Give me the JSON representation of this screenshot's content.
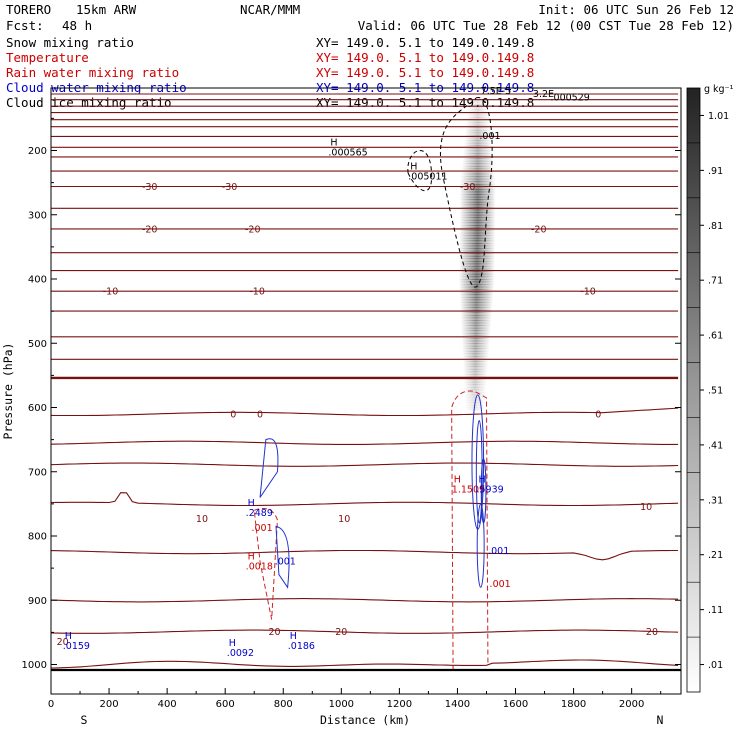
{
  "header": {
    "model": "TORERO",
    "resolution": "15km ARW",
    "org": "NCAR/MMM",
    "init": "Init: 06 UTC Sun 26 Feb 12",
    "fcst_label": "Fcst:",
    "fcst_value": "48 h",
    "valid": "Valid: 06 UTC Tue 28 Feb 12 (00 CST Tue 28 Feb 12)",
    "field_lines": [
      {
        "name": "Snow mixing ratio",
        "xy": "XY= 149.0.  5.1 to 149.0.149.8",
        "color": "#000000"
      },
      {
        "name": "Temperature",
        "xy": "XY= 149.0.  5.1 to 149.0.149.8",
        "color": "#cc0000"
      },
      {
        "name": "Rain water mixing ratio",
        "xy": "XY= 149.0.  5.1 to 149.0.149.8",
        "color": "#cc0000"
      },
      {
        "name": "Cloud water mixing ratio",
        "xy": "XY= 149.0.  5.1 to 149.0.149.8",
        "color": "#0000cc"
      },
      {
        "name": "Cloud ice mixing ratio",
        "xy": "XY= 149.0.  5.1 to 149.0.149.8",
        "color": "#000000"
      }
    ]
  },
  "chart_data": {
    "type": "cross-section",
    "xlabel": "Distance (km)",
    "ylabel": "Pressure (hPa)",
    "x_range": [
      0,
      2170
    ],
    "x_ticks": [
      0,
      200,
      400,
      600,
      800,
      1000,
      1200,
      1400,
      1600,
      1800,
      2000
    ],
    "y_range_hPa": [
      100,
      1050
    ],
    "y_ticks": [
      200,
      300,
      400,
      500,
      600,
      700,
      800,
      900,
      1000
    ],
    "left_end_label": "S",
    "right_end_label": "N",
    "colorbar_unit": "g kg⁻¹",
    "colorbar_levels": [
      0.01,
      0.11,
      0.21,
      0.31,
      0.41,
      0.51,
      0.61,
      0.71,
      0.81,
      0.91,
      1.01
    ],
    "colorbar_labels": [
      ".01",
      ".11",
      ".21",
      ".31",
      ".41",
      ".51",
      ".61",
      ".71",
      ".81",
      ".91",
      "1.01"
    ],
    "temperature_contour_labels": [
      {
        "text": "-30",
        "x_km": 340,
        "p_hPa": 256
      },
      {
        "text": "-30",
        "x_km": 615,
        "p_hPa": 256
      },
      {
        "text": "-30",
        "x_km": 1435,
        "p_hPa": 256
      },
      {
        "text": "-20",
        "x_km": 340,
        "p_hPa": 322
      },
      {
        "text": "-20",
        "x_km": 695,
        "p_hPa": 322
      },
      {
        "text": "-20",
        "x_km": 1680,
        "p_hPa": 322
      },
      {
        "text": "-10",
        "x_km": 205,
        "p_hPa": 419
      },
      {
        "text": "-10",
        "x_km": 710,
        "p_hPa": 419
      },
      {
        "text": "-10",
        "x_km": 1850,
        "p_hPa": 419
      },
      {
        "text": "0",
        "x_km": 628,
        "p_hPa": 610
      },
      {
        "text": "0",
        "x_km": 720,
        "p_hPa": 610
      },
      {
        "text": "0",
        "x_km": 1885,
        "p_hPa": 610
      },
      {
        "text": "10",
        "x_km": 520,
        "p_hPa": 773
      },
      {
        "text": "10",
        "x_km": 1010,
        "p_hPa": 773
      },
      {
        "text": "10",
        "x_km": 2050,
        "p_hPa": 754
      },
      {
        "text": "20",
        "x_km": 770,
        "p_hPa": 949
      },
      {
        "text": "20",
        "x_km": 1000,
        "p_hPa": 949
      },
      {
        "text": "20",
        "x_km": 2070,
        "p_hPa": 949
      },
      {
        "text": "20",
        "x_km": 40,
        "p_hPa": 964
      }
    ],
    "maxima_labels": [
      {
        "mark": "H",
        "value": ".000565",
        "x_km": 990,
        "p_hPa": 208,
        "color": "#000000"
      },
      {
        "mark": "H",
        "value": ".005011",
        "x_km": 1265,
        "p_hPa": 245,
        "color": "#000000"
      },
      {
        "mark": "",
        "value": ".000529",
        "x_km": 1755,
        "p_hPa": 122,
        "color": "#000000"
      },
      {
        "mark": "",
        "value": ".001",
        "x_km": 1510,
        "p_hPa": 182,
        "color": "#000000"
      },
      {
        "mark": "H",
        "value": ".2489",
        "x_km": 705,
        "p_hPa": 769,
        "color": "#0000cc"
      },
      {
        "mark": "",
        "value": ".001",
        "x_km": 725,
        "p_hPa": 792,
        "color": "#cc0000"
      },
      {
        "mark": "H",
        "value": ".0018",
        "x_km": 705,
        "p_hPa": 852,
        "color": "#cc0000"
      },
      {
        "mark": "",
        "value": ".001",
        "x_km": 805,
        "p_hPa": 844,
        "color": "#0000cc"
      },
      {
        "mark": "H",
        "value": "1.1509",
        "x_km": 1415,
        "p_hPa": 732,
        "color": "#cc0000"
      },
      {
        "mark": "H",
        "value": ".5939",
        "x_km": 1500,
        "p_hPa": 732,
        "color": "#0000cc"
      },
      {
        "mark": "",
        "value": ".001",
        "x_km": 1540,
        "p_hPa": 828,
        "color": "#0000cc"
      },
      {
        "mark": "",
        "value": ".001",
        "x_km": 1545,
        "p_hPa": 879,
        "color": "#cc0000"
      },
      {
        "mark": "H",
        "value": ".0159",
        "x_km": 75,
        "p_hPa": 976,
        "color": "#0000cc"
      },
      {
        "mark": "H",
        "value": ".0092",
        "x_km": 640,
        "p_hPa": 987,
        "color": "#0000cc"
      },
      {
        "mark": "H",
        "value": ".0186",
        "x_km": 850,
        "p_hPa": 976,
        "color": "#0000cc"
      }
    ],
    "overlap_labels": [
      "7.5E-5",
      "3.2E-"
    ]
  }
}
